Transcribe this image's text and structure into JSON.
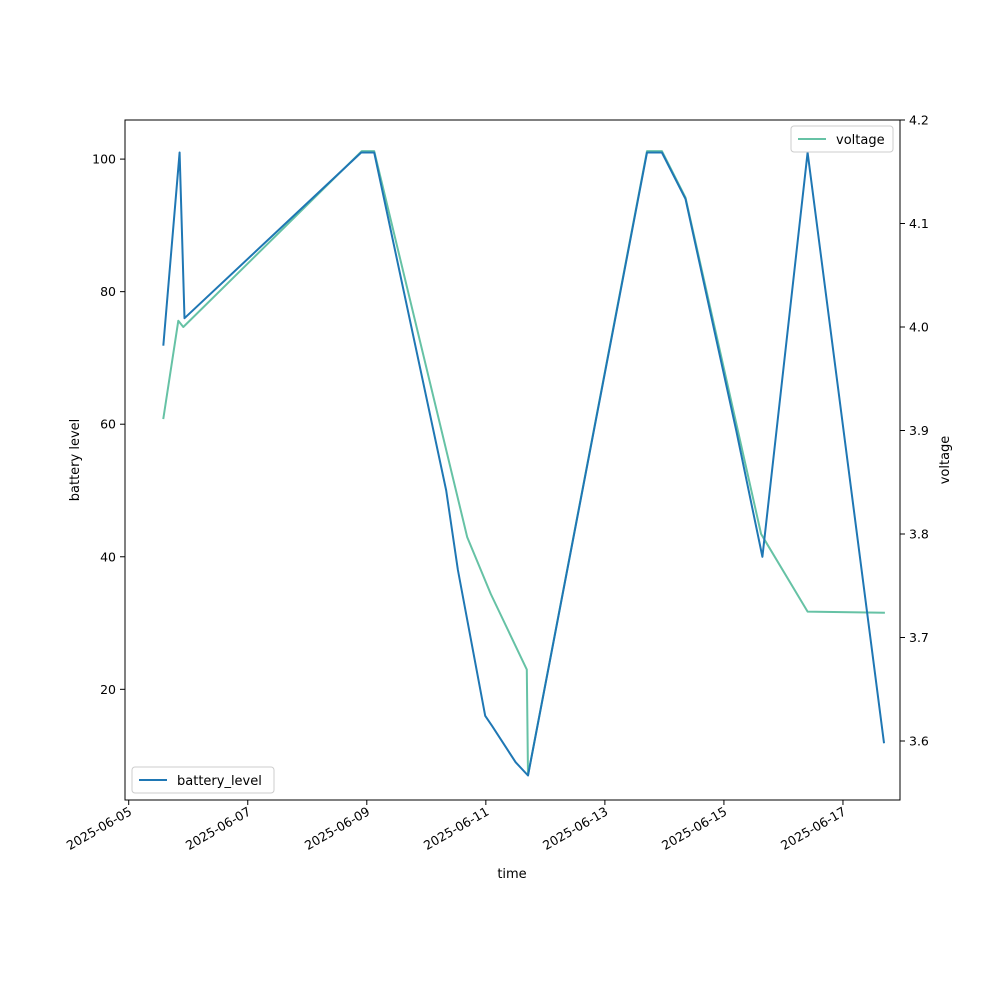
{
  "chart_data": {
    "type": "line",
    "xlabel": "time",
    "ylabel_left": "battery level",
    "ylabel_right": "voltage",
    "x_ticks": [
      "2025-06-05",
      "2025-06-07",
      "2025-06-09",
      "2025-06-11",
      "2025-06-13",
      "2025-06-15",
      "2025-06-17"
    ],
    "y_left_ticks": [
      20,
      40,
      60,
      80,
      100
    ],
    "y_right_ticks": [
      3.6,
      3.7,
      3.8,
      3.9,
      4.0,
      4.1,
      4.2
    ],
    "y_left_range": [
      3.3,
      105.9
    ],
    "y_right_range": [
      3.543,
      4.2
    ],
    "x_range": [
      "2025-06-04T22:30",
      "2025-06-17T23:00"
    ],
    "series": [
      {
        "name": "battery_level",
        "axis": "left",
        "color": "#1f77b4",
        "legend_position": "lower left",
        "points": [
          [
            "2025-06-05T14:00",
            72
          ],
          [
            "2025-06-05T20:30",
            101
          ],
          [
            "2025-06-05T22:30",
            76
          ],
          [
            "2025-06-08T21:45",
            101
          ],
          [
            "2025-06-09T03:00",
            101
          ],
          [
            "2025-06-10T08:00",
            50
          ],
          [
            "2025-06-10T12:45",
            38
          ],
          [
            "2025-06-10T23:45",
            16
          ],
          [
            "2025-06-11T02:30",
            14.5
          ],
          [
            "2025-06-11T12:00",
            9
          ],
          [
            "2025-06-11T17:00",
            7
          ],
          [
            "2025-06-13T17:00",
            101
          ],
          [
            "2025-06-13T23:00",
            101
          ],
          [
            "2025-06-14T08:30",
            94
          ],
          [
            "2025-06-15T05:00",
            59
          ],
          [
            "2025-06-15T15:30",
            40
          ],
          [
            "2025-06-16T09:45",
            101
          ],
          [
            "2025-06-17T16:30",
            12
          ]
        ]
      },
      {
        "name": "voltage",
        "axis": "right",
        "color": "#66c2a5",
        "legend_position": "upper right",
        "points": [
          [
            "2025-06-05T14:00",
            3.912
          ],
          [
            "2025-06-05T20:00",
            4.006
          ],
          [
            "2025-06-05T22:00",
            4.0
          ],
          [
            "2025-06-08T22:00",
            4.17
          ],
          [
            "2025-06-09T03:00",
            4.17
          ],
          [
            "2025-06-10T16:30",
            3.797
          ],
          [
            "2025-06-11T02:00",
            3.742
          ],
          [
            "2025-06-11T16:30",
            3.669
          ],
          [
            "2025-06-11T17:00",
            3.567
          ],
          [
            "2025-06-13T17:00",
            4.17
          ],
          [
            "2025-06-13T23:00",
            4.17
          ],
          [
            "2025-06-14T08:30",
            4.125
          ],
          [
            "2025-06-15T15:00",
            3.8
          ],
          [
            "2025-06-16T09:45",
            3.725
          ],
          [
            "2025-06-17T16:30",
            3.724
          ]
        ]
      }
    ]
  }
}
